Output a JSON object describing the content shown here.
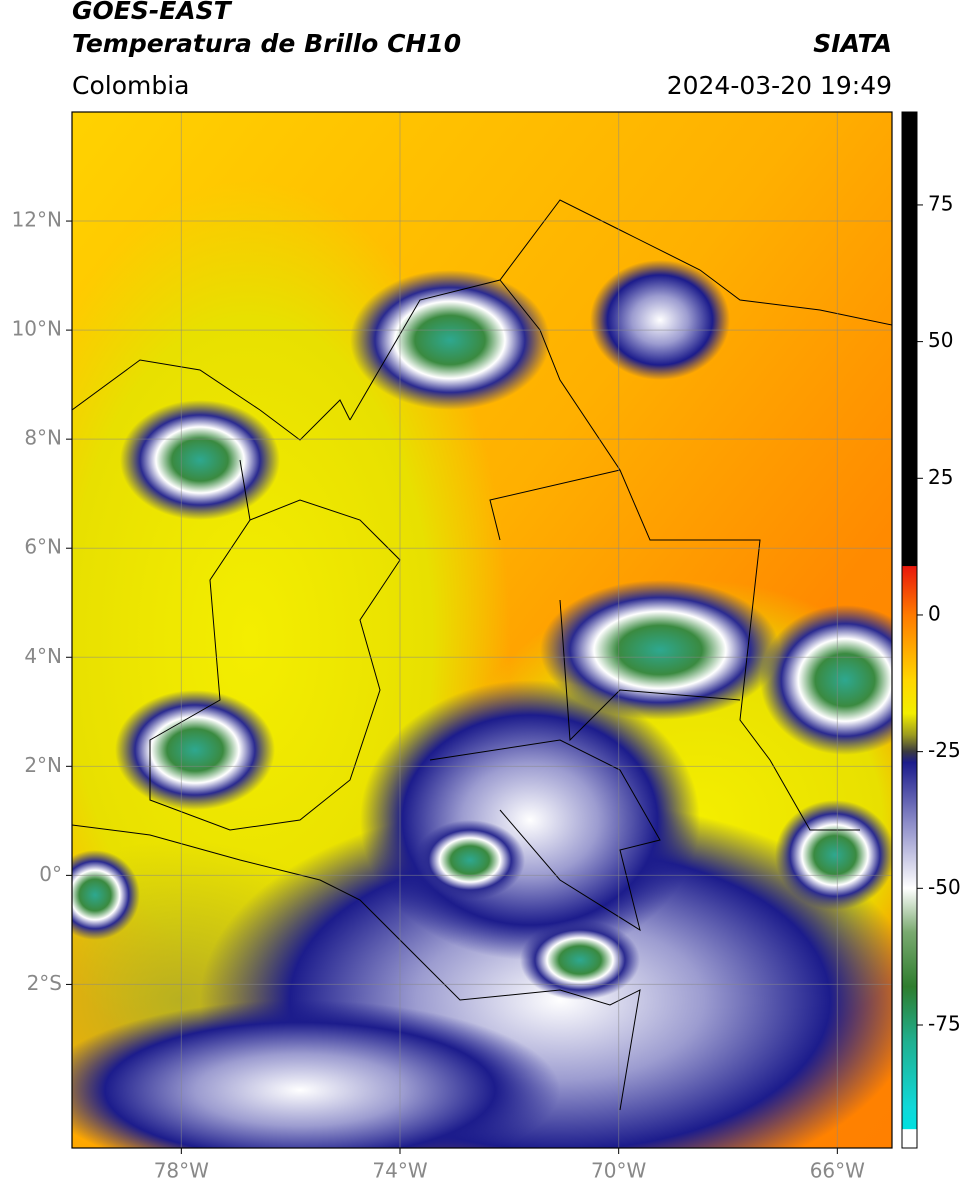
{
  "header": {
    "title": "GOES-EAST",
    "subtitle": "Temperatura de Brillo CH10",
    "source": "SIATA",
    "region": "Colombia",
    "datetime": "2024-03-20 19:49"
  },
  "map": {
    "xlim": [
      -80,
      -65
    ],
    "ylim": [
      -5,
      14
    ],
    "xticks": [
      {
        "value": -78,
        "label": "78°W"
      },
      {
        "value": -74,
        "label": "74°W"
      },
      {
        "value": -70,
        "label": "70°W"
      },
      {
        "value": -66,
        "label": "66°W"
      }
    ],
    "yticks": [
      {
        "value": 12,
        "label": "12°N"
      },
      {
        "value": 10,
        "label": "10°N"
      },
      {
        "value": 8,
        "label": "8°N"
      },
      {
        "value": 6,
        "label": "6°N"
      },
      {
        "value": 4,
        "label": "4°N"
      },
      {
        "value": 2,
        "label": "2°N"
      },
      {
        "value": 0,
        "label": "0°"
      },
      {
        "value": -2,
        "label": "2°S"
      }
    ],
    "grid": true
  },
  "colorbar": {
    "lim": [
      -97.5,
      92
    ],
    "ticks": [
      75,
      50,
      25,
      0,
      -25,
      -50,
      -75
    ],
    "stops": [
      [
        92,
        "#000000"
      ],
      [
        9,
        "#000000"
      ],
      [
        8.9,
        "#e8180c"
      ],
      [
        0,
        "#ff7a00"
      ],
      [
        -12,
        "#ffd700"
      ],
      [
        -18,
        "#f2ee00"
      ],
      [
        -22,
        "#9a9a20"
      ],
      [
        -25,
        "#3a3a40"
      ],
      [
        -27,
        "#1c1c8c"
      ],
      [
        -38,
        "#8c8cc8"
      ],
      [
        -50,
        "#ffffff"
      ],
      [
        -58,
        "#7aaa70"
      ],
      [
        -68,
        "#2e7d2e"
      ],
      [
        -78,
        "#20b090"
      ],
      [
        -90,
        "#10d8d8"
      ],
      [
        -94,
        "#00e0e0"
      ],
      [
        -94.1,
        "#ffffff"
      ],
      [
        -97.5,
        "#ffffff"
      ]
    ]
  }
}
